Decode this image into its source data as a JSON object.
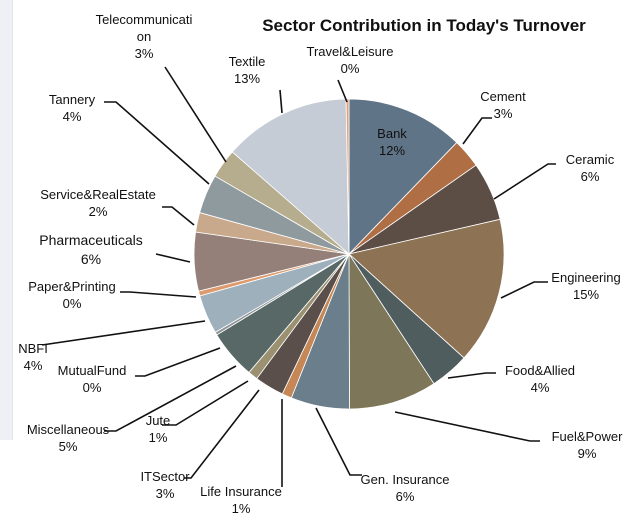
{
  "chart_data": {
    "type": "pie",
    "title": "Sector Contribution in Today's Turnover",
    "start_angle_deg": 0,
    "direction": "clockwise",
    "slices": [
      {
        "name": "Bank",
        "value": 12,
        "label": "12%",
        "color": "#5f7487"
      },
      {
        "name": "Cement",
        "value": 3,
        "label": "3%",
        "color": "#b06e45"
      },
      {
        "name": "Ceramic",
        "value": 6,
        "label": "6%",
        "color": "#5c4d45"
      },
      {
        "name": "Engineering",
        "value": 15,
        "label": "15%",
        "color": "#8d7254"
      },
      {
        "name": "Food&Allied",
        "value": 4,
        "label": "4%",
        "color": "#4f5d5f"
      },
      {
        "name": "Fuel&Power",
        "value": 9,
        "label": "9%",
        "color": "#7d7659"
      },
      {
        "name": "Gen. Insurance",
        "value": 6,
        "label": "6%",
        "color": "#6a7e8b"
      },
      {
        "name": "Life Insurance",
        "value": 1,
        "label": "1%",
        "color": "#c58756"
      },
      {
        "name": "ITSector",
        "value": 3,
        "label": "3%",
        "color": "#5a4f4b"
      },
      {
        "name": "Jute",
        "value": 1,
        "label": "1%",
        "color": "#9b9070"
      },
      {
        "name": "Miscellaneous",
        "value": 5,
        "label": "5%",
        "color": "#586866"
      },
      {
        "name": "MutualFund",
        "value": 0.3,
        "label": "0%",
        "color": "#8e9394"
      },
      {
        "name": "NBFI",
        "value": 4,
        "label": "4%",
        "color": "#9fb0bd"
      },
      {
        "name": "Paper&Printing",
        "value": 0.5,
        "label": "0%",
        "color": "#dd9a6e"
      },
      {
        "name": "Pharmaceuticals",
        "value": 6,
        "label": "6%",
        "color": "#948078"
      },
      {
        "name": "Service&RealEstate",
        "value": 2,
        "label": "2%",
        "color": "#c9a98c"
      },
      {
        "name": "Tannery",
        "value": 4,
        "label": "4%",
        "color": "#8f9a9e"
      },
      {
        "name": "Telecommunication",
        "value": 3,
        "label": "3%",
        "color": "#b6ad8e"
      },
      {
        "name": "Textile",
        "value": 13,
        "label": "13%",
        "color": "#c6ccd6"
      },
      {
        "name": "Travel&Leisure",
        "value": 0.3,
        "label": "0%",
        "color": "#e3a27d"
      }
    ],
    "label_text": {
      "bank": "Bank",
      "cement": "Cement",
      "ceramic": "Ceramic",
      "engineering": "Engineering",
      "food": "Food&Allied",
      "fuel": "Fuel&Power",
      "gen_ins": "Gen. Insurance",
      "life_ins": "Life Insurance",
      "it": "ITSector",
      "jute": "Jute",
      "misc": "Miscellaneous",
      "mutual": "MutualFund",
      "nbfi": "NBFI",
      "paper": "Paper&Printing",
      "pharma": "Pharmaceuticals",
      "service": "Service&RealEstate",
      "tannery": "Tannery",
      "telecom_1": "Telecommunicati",
      "telecom_2": "on",
      "textile": "Textile",
      "travel": "Travel&Leisure"
    }
  }
}
